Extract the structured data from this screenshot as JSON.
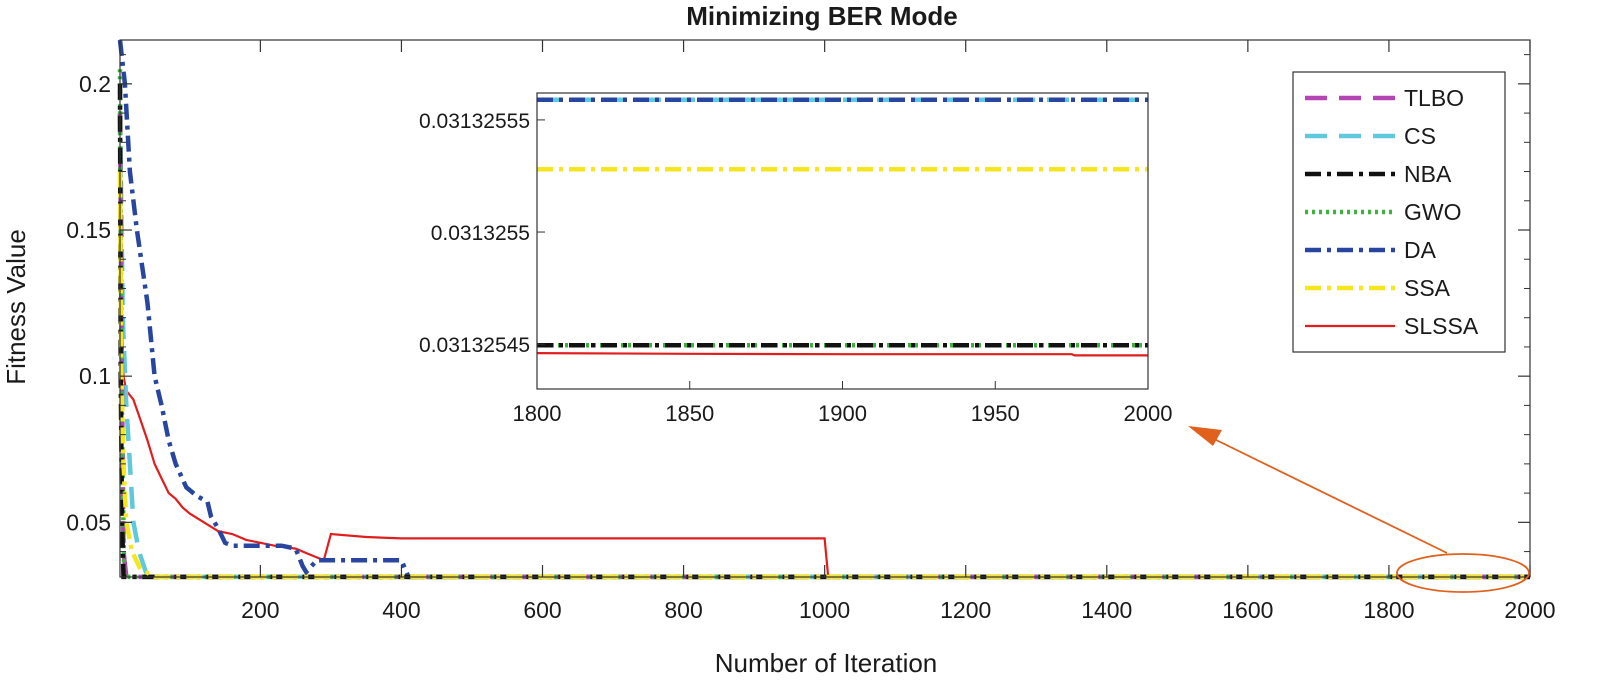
{
  "chart_data": [
    {
      "panel": "main",
      "type": "line",
      "title": "Minimizing BER Mode",
      "xlabel": "Number of Iteration",
      "ylabel": "Fitness Value",
      "xlim": [
        1,
        2000
      ],
      "ylim": [
        0.0313,
        0.215
      ],
      "xticks": [
        200,
        400,
        600,
        800,
        1000,
        1200,
        1400,
        1600,
        1800,
        2000
      ],
      "yticks": [
        0.05,
        0.1,
        0.15,
        0.2
      ],
      "ytick_labels": [
        "0.05",
        "0.1",
        "0.15",
        "0.2"
      ],
      "legend_position": "top-right",
      "series": [
        {
          "name": "TLBO",
          "color": "#b446b4",
          "dash": "dash",
          "x": [
            1,
            3,
            6,
            10,
            2000
          ],
          "y": [
            0.19,
            0.12,
            0.04,
            0.0313255,
            0.0313255
          ]
        },
        {
          "name": "CS",
          "color": "#5fc8dc",
          "dash": "dash",
          "x": [
            1,
            5,
            10,
            15,
            20,
            28,
            40,
            2000
          ],
          "y": [
            0.19,
            0.12,
            0.09,
            0.07,
            0.05,
            0.04,
            0.0313255,
            0.0313255
          ]
        },
        {
          "name": "NBA",
          "color": "#111111",
          "dash": "dashdot",
          "x": [
            1,
            2,
            4,
            6,
            2000
          ],
          "y": [
            0.2,
            0.1,
            0.05,
            0.0313255,
            0.0313255
          ]
        },
        {
          "name": "GWO",
          "color": "#3cb43c",
          "dash": "dot",
          "x": [
            1,
            2,
            4,
            7,
            2000
          ],
          "y": [
            0.205,
            0.15,
            0.08,
            0.0313255,
            0.0313255
          ]
        },
        {
          "name": "DA",
          "color": "#2846a0",
          "dash": "dashdot",
          "x": [
            1,
            8,
            15,
            25,
            40,
            50,
            60,
            70,
            80,
            95,
            110,
            125,
            130,
            140,
            150,
            160,
            200,
            230,
            250,
            260,
            265,
            280,
            400,
            410,
            2000
          ],
          "y": [
            0.215,
            0.2,
            0.17,
            0.15,
            0.125,
            0.1,
            0.09,
            0.078,
            0.07,
            0.062,
            0.059,
            0.057,
            0.052,
            0.048,
            0.043,
            0.042,
            0.042,
            0.042,
            0.041,
            0.035,
            0.033,
            0.037,
            0.037,
            0.0313255,
            0.0313255
          ]
        },
        {
          "name": "SSA",
          "color": "#f5e61e",
          "dash": "dashdot",
          "x": [
            1,
            3,
            6,
            10,
            18,
            30,
            50,
            2000
          ],
          "y": [
            0.17,
            0.1,
            0.07,
            0.05,
            0.04,
            0.034,
            0.0313255,
            0.0313255
          ]
        },
        {
          "name": "SLSSA",
          "color": "#e01e1e",
          "dash": "solid",
          "x": [
            1,
            4,
            6,
            10,
            20,
            30,
            40,
            50,
            60,
            70,
            80,
            90,
            100,
            120,
            140,
            160,
            180,
            200,
            220,
            250,
            270,
            280,
            290,
            300,
            350,
            400,
            500,
            600,
            800,
            1000,
            1005,
            1020,
            2000
          ],
          "y": [
            0.145,
            0.12,
            0.1,
            0.095,
            0.092,
            0.085,
            0.078,
            0.07,
            0.065,
            0.06,
            0.058,
            0.055,
            0.053,
            0.05,
            0.047,
            0.046,
            0.044,
            0.043,
            0.042,
            0.041,
            0.039,
            0.038,
            0.037,
            0.046,
            0.045,
            0.0445,
            0.0445,
            0.0445,
            0.0445,
            0.0445,
            0.0313254,
            0.0313254,
            0.0313254
          ]
        }
      ]
    },
    {
      "panel": "inset",
      "type": "line",
      "xlim": [
        1800,
        2000
      ],
      "ylim": [
        0.03132543,
        0.031325562
      ],
      "xticks": [
        1800,
        1850,
        1900,
        1950,
        2000
      ],
      "yticks": [
        0.03132545,
        0.0313255,
        0.03132555
      ],
      "ytick_labels": [
        "0.03132545",
        "0.0313255",
        "0.03132555"
      ],
      "series": [
        {
          "ref": "TLBO",
          "x": [
            1800,
            2000
          ],
          "y": [
            0.031325559,
            0.031325559
          ]
        },
        {
          "ref": "CS",
          "x": [
            1800,
            2000
          ],
          "y": [
            0.031325559,
            0.031325559
          ]
        },
        {
          "ref": "NBA",
          "x": [
            1800,
            2000
          ],
          "y": [
            0.0313254495,
            0.0313254495
          ]
        },
        {
          "ref": "GWO",
          "x": [
            1800,
            2000
          ],
          "y": [
            0.0313254495,
            0.0313254495
          ]
        },
        {
          "ref": "DA",
          "x": [
            1800,
            2000
          ],
          "y": [
            0.031325559,
            0.031325559
          ]
        },
        {
          "ref": "SSA",
          "x": [
            1800,
            2000
          ],
          "y": [
            0.031325528,
            0.031325528
          ]
        },
        {
          "ref": "SLSSA",
          "x": [
            1800,
            1850,
            1900,
            1975,
            1976,
            2000
          ],
          "y": [
            0.031325446,
            0.0313254457,
            0.0313254455,
            0.0313254455,
            0.031325445,
            0.031325445
          ]
        }
      ]
    }
  ],
  "annotation": {
    "color": "#e0601e"
  }
}
